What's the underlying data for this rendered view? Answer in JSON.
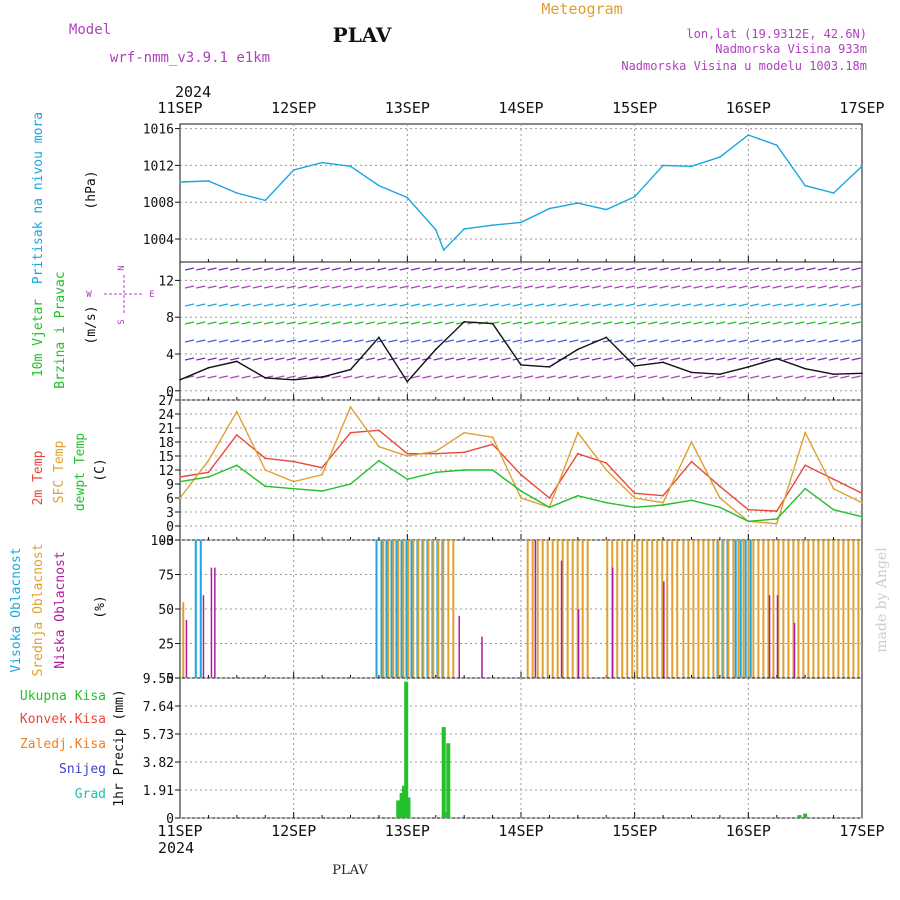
{
  "header": {
    "meteogram_label": "Meteogram",
    "model_label": "Model",
    "model_name": "wrf-nmm_v3.9.1  e1km",
    "station": "PLAV",
    "lonlat": "lon,lat (19.9312E, 42.6N)",
    "elevation": "Nadmorska Visina 933m",
    "model_elevation": "Nadmorska Visina u modelu 1003.18m",
    "year": "2024",
    "footer_station": "PLAV",
    "credit": "made by Angel"
  },
  "colors": {
    "pressure": "#1aa7e0",
    "temp2m": "#e8483c",
    "sfc_temp": "#e0a030",
    "dewpt": "#22c02a",
    "high_cloud": "#1aa7e0",
    "mid_cloud": "#e0a030",
    "low_cloud": "#b01aa0",
    "total_precip": "#22c02a",
    "conv_precip": "#e8483c",
    "strat_precip": "#f08020",
    "snow": "#4040d0",
    "grad": "#20c0b0",
    "model_label": "#b040c0",
    "meteogram_label": "#e0a030"
  },
  "x_axis": {
    "tick_labels": [
      "11SEP",
      "12SEP",
      "13SEP",
      "14SEP",
      "15SEP",
      "16SEP",
      "17SEP"
    ]
  },
  "chart_data": [
    {
      "type": "line",
      "panel": "pressure",
      "ylabel_main": "Pritisak na nivou mora",
      "ylabel_unit": "(hPa)",
      "yticks": [
        "1004",
        "1008",
        "1012",
        "1016"
      ],
      "ylim": [
        1001.5,
        1016.5
      ],
      "x": [
        0,
        0.25,
        0.5,
        0.75,
        1,
        1.25,
        1.5,
        1.75,
        2,
        2.25,
        2.32,
        2.5,
        2.75,
        3,
        3.25,
        3.5,
        3.75,
        4,
        4.25,
        4.5,
        4.75,
        5,
        5.25,
        5.5,
        5.75,
        6
      ],
      "series": [
        {
          "values": [
            1010.2,
            1010.3,
            1009.0,
            1008.2,
            1011.5,
            1012.3,
            1011.9,
            1009.8,
            1008.5,
            1005.0,
            1002.8,
            1005.1,
            1005.5,
            1005.8,
            1007.3,
            1007.9,
            1007.2,
            1008.6,
            1012.0,
            1011.9,
            1012.9,
            1015.3,
            1014.2,
            1009.8,
            1009.0,
            1011.9
          ]
        }
      ]
    },
    {
      "type": "line",
      "panel": "wind",
      "ylabel_main": "10m Vjetar",
      "ylabel_sub": "Brzina i Pravac",
      "ylabel_unit": "(m/s)",
      "compass": [
        "N",
        "E",
        "S",
        "W"
      ],
      "yticks": [
        "0",
        "4",
        "8",
        "12"
      ],
      "ylim": [
        -1,
        14
      ],
      "x": [
        0,
        0.25,
        0.5,
        0.75,
        1,
        1.25,
        1.5,
        1.75,
        2,
        2.25,
        2.5,
        2.75,
        3,
        3.25,
        3.5,
        3.75,
        4,
        4.25,
        4.5,
        4.75,
        5,
        5.25,
        5.5,
        5.75,
        6
      ],
      "series": [
        {
          "values": [
            1.2,
            2.5,
            3.2,
            1.4,
            1.2,
            1.5,
            2.3,
            5.8,
            1.0,
            4.5,
            7.5,
            7.3,
            2.8,
            2.6,
            4.5,
            5.8,
            2.7,
            3.1,
            2.0,
            1.8,
            2.6,
            3.5,
            2.4,
            1.8,
            1.9
          ]
        }
      ]
    },
    {
      "type": "line",
      "panel": "temperature",
      "ylabel_main": "2m Temp",
      "ylabel_sub1": "SFC Temp",
      "ylabel_sub2": "dewpt Temp",
      "ylabel_unit": "(C)",
      "yticks": [
        "-3",
        "0",
        "3",
        "6",
        "9",
        "12",
        "15",
        "18",
        "21",
        "24",
        "27"
      ],
      "ylim": [
        -3,
        27
      ],
      "x": [
        0,
        0.25,
        0.5,
        0.75,
        1,
        1.25,
        1.5,
        1.75,
        2,
        2.25,
        2.5,
        2.75,
        3,
        3.25,
        3.5,
        3.75,
        4,
        4.25,
        4.5,
        4.75,
        5,
        5.25,
        5.5,
        5.75,
        6
      ],
      "series": [
        {
          "name": "2m Temp",
          "values": [
            10.5,
            11.5,
            19.5,
            14.5,
            13.8,
            12.5,
            20.0,
            20.5,
            15.5,
            15.5,
            15.8,
            17.5,
            11.0,
            6.0,
            15.5,
            13.5,
            7.0,
            6.5,
            13.8,
            8.5,
            3.5,
            3.2,
            13.0,
            10.0,
            7.0
          ]
        },
        {
          "name": "SFC Temp",
          "values": [
            6.0,
            14.0,
            24.5,
            12.0,
            9.5,
            11.0,
            25.5,
            17.0,
            15.0,
            16.0,
            20.0,
            19.0,
            6.0,
            4.0,
            20.0,
            12.0,
            6.0,
            5.0,
            18.0,
            6.0,
            1.0,
            0.5,
            20.0,
            8.0,
            5.0
          ]
        },
        {
          "name": "dewpt Temp",
          "values": [
            9.5,
            10.5,
            13.0,
            8.5,
            8.0,
            7.5,
            9.0,
            14.0,
            10.0,
            11.5,
            12.0,
            12.0,
            7.5,
            4.0,
            6.5,
            5.0,
            4.0,
            4.5,
            5.5,
            4.0,
            1.0,
            1.5,
            8.0,
            3.5,
            2.0
          ]
        }
      ]
    },
    {
      "type": "bar",
      "panel": "cloud",
      "ylabel_main": "Visoka Oblacnost",
      "ylabel_sub1": "Srednja Oblacnost",
      "ylabel_sub2": "Niska Oblacnost",
      "ylabel_unit": "(%)",
      "yticks": [
        "0",
        "25",
        "50",
        "75",
        "100"
      ],
      "ylim": [
        0,
        100
      ],
      "series": [
        {
          "name": "Visoka Oblacnost",
          "segments": [
            [
              0.13,
              0.18,
              100
            ],
            [
              1.72,
              2.06,
              100
            ],
            [
              2.08,
              2.3,
              100
            ],
            [
              4.72,
              4.85,
              100
            ],
            [
              4.88,
              5.02,
              100
            ]
          ]
        },
        {
          "name": "Srednja Oblacnost",
          "segments": [
            [
              0.02,
              0.05,
              55
            ],
            [
              1.78,
              2.42,
              100
            ],
            [
              3.05,
              3.62,
              100
            ],
            [
              3.75,
              4.38,
              100
            ],
            [
              4.42,
              6.0,
              100
            ]
          ]
        },
        {
          "name": "Niska Oblacnost",
          "bars": [
            [
              0.05,
              42
            ],
            [
              0.2,
              60
            ],
            [
              0.27,
              80
            ],
            [
              0.3,
              80
            ],
            [
              2.45,
              45
            ],
            [
              2.65,
              30
            ],
            [
              3.12,
              100
            ],
            [
              3.35,
              85
            ],
            [
              3.5,
              50
            ],
            [
              3.8,
              80
            ],
            [
              4.25,
              70
            ],
            [
              5.18,
              60
            ],
            [
              5.25,
              60
            ],
            [
              5.4,
              40
            ]
          ]
        }
      ]
    },
    {
      "type": "bar",
      "panel": "precip",
      "ylabel": "1hr Precip (mm)",
      "legend": [
        "Ukupna Kisa",
        "Konvek.Kisa",
        "Zaledj.Kisa",
        "Snijeg",
        "Grad"
      ],
      "yticks": [
        "0",
        "1.91",
        "3.82",
        "5.73",
        "7.64",
        "9.55"
      ],
      "ylim": [
        0,
        9.55
      ],
      "series": [
        {
          "name": "Ukupna Kisa",
          "bars": [
            [
              1.92,
              1.2
            ],
            [
              1.95,
              1.7
            ],
            [
              1.97,
              2.2
            ],
            [
              1.99,
              9.3
            ],
            [
              2.01,
              1.4
            ],
            [
              2.32,
              6.2
            ],
            [
              2.36,
              5.1
            ],
            [
              2.34,
              0.4
            ],
            [
              5.45,
              0.2
            ],
            [
              5.5,
              0.3
            ]
          ]
        }
      ]
    }
  ]
}
